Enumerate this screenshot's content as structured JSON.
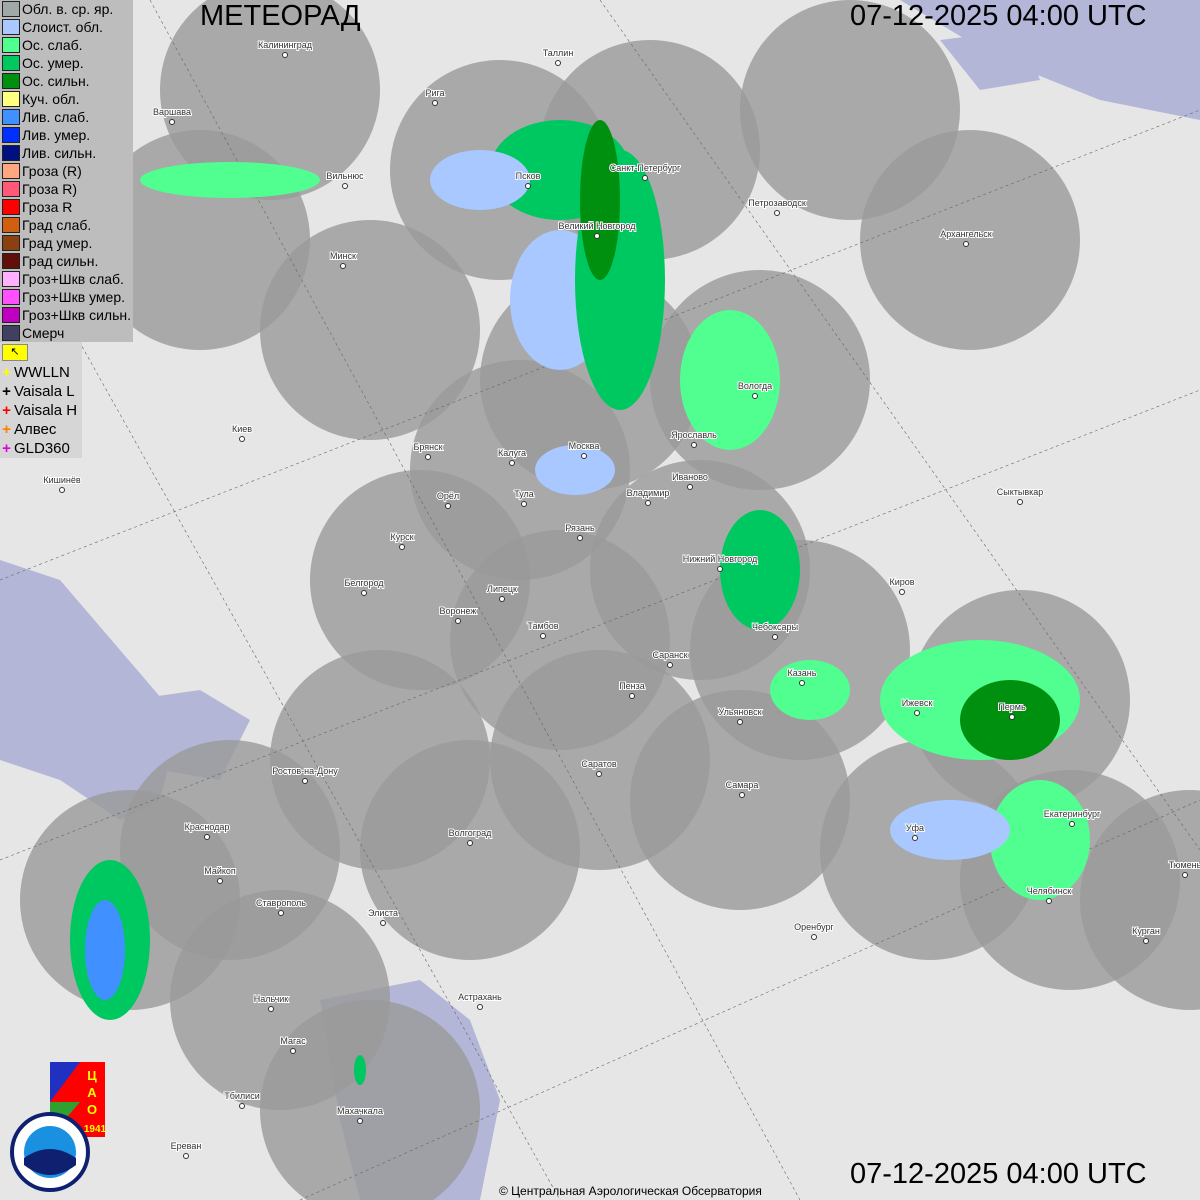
{
  "header": {
    "title": "МЕТЕОРАД",
    "datetime_top": "07-12-2025  04:00 UTC",
    "datetime_bottom": "07-12-2025  04:00 UTC"
  },
  "legend": [
    {
      "label": "Обл. в. ср. яр.",
      "color": "#a0a8a8"
    },
    {
      "label": "Слоист. обл.",
      "color": "#a8c8ff"
    },
    {
      "label": "Ос. слаб.",
      "color": "#50ff90"
    },
    {
      "label": "Ос. умер.",
      "color": "#00c860"
    },
    {
      "label": "Ос. сильн.",
      "color": "#009010"
    },
    {
      "label": "Куч. обл.",
      "color": "#ffff80"
    },
    {
      "label": "Лив. слаб.",
      "color": "#4090ff"
    },
    {
      "label": "Лив. умер.",
      "color": "#0030ff"
    },
    {
      "label": "Лив. сильн.",
      "color": "#001080"
    },
    {
      "label": "Гроза (R)",
      "color": "#ffa880"
    },
    {
      "label": "Гроза R)",
      "color": "#ff5878"
    },
    {
      "label": "Гроза R",
      "color": "#ff0000"
    },
    {
      "label": "Град слаб.",
      "color": "#d06010"
    },
    {
      "label": "Град умер.",
      "color": "#8a4010"
    },
    {
      "label": "Град сильн.",
      "color": "#601008"
    },
    {
      "label": "Гроз+Шкв слаб.",
      "color": "#ffb0ff"
    },
    {
      "label": "Гроз+Шкв умер.",
      "color": "#ff50ff"
    },
    {
      "label": "Гроз+Шкв сильн.",
      "color": "#c000c0"
    },
    {
      "label": "Смерч",
      "color": "#404060"
    }
  ],
  "lightning_toggle_icon": "arrow-icon",
  "lightning": [
    {
      "label": "WWLLN",
      "color": "#ffff00"
    },
    {
      "label": "Vaisala L",
      "color": "#000000"
    },
    {
      "label": "Vaisala H",
      "color": "#ff0000"
    },
    {
      "label": "Алвес",
      "color": "#ff8000"
    },
    {
      "label": "GLD360",
      "color": "#e000e0"
    }
  ],
  "cities": [
    "Калининград",
    "Таллин",
    "Рига",
    "Варшава",
    "Санкт-Петербург",
    "Псков",
    "Вильнюс",
    "Петрозаводск",
    "Великий Новгород",
    "Архангельск",
    "Минск",
    "Вологда",
    "Киев",
    "Брянск",
    "Калуга",
    "Москва",
    "Ярославль",
    "Иваново",
    "Кишинёв",
    "Орёл",
    "Тула",
    "Владимир",
    "Сыктывкар",
    "Рязань",
    "Курск",
    "Нижний Новгород",
    "Белгород",
    "Липецк",
    "Киров",
    "Воронеж",
    "Тамбов",
    "Чебоксары",
    "Саранск",
    "Казань",
    "Пенза",
    "Ижевск",
    "Пермь",
    "Ульяновск",
    "Ростов-на-Дону",
    "Саратов",
    "Самара",
    "Екатеринбург",
    "Краснодар",
    "Уфа",
    "Волгоград",
    "Майкоп",
    "Тюмень",
    "Челябинск",
    "Ставрополь",
    "Элиста",
    "Оренбург",
    "Курган",
    "Астрахань",
    "Нальчик",
    "Магас",
    "Тбилиси",
    "Махачкала",
    "Ереван"
  ],
  "logos": {
    "cao": "ЦАО 1941",
    "roshydromet": "РОСГИДРОМЕТ ROSHYDROMET"
  },
  "copyright": "© Центральная Аэрологическая Обсерватория"
}
